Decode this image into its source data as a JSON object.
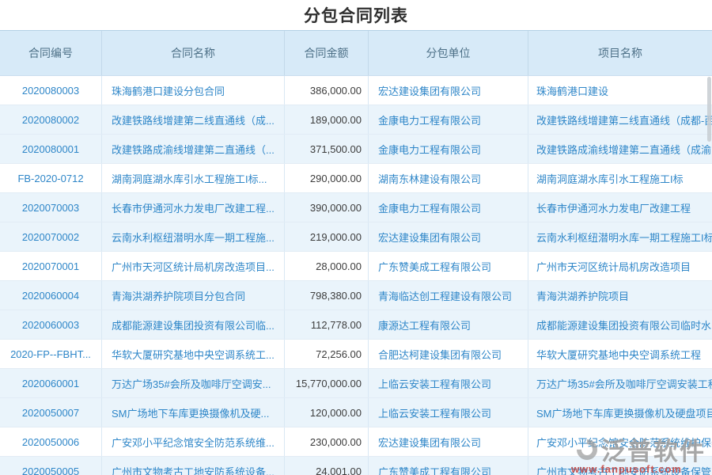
{
  "page": {
    "title": "分包合同列表"
  },
  "table": {
    "columns": [
      {
        "key": "code",
        "label": "合同编号"
      },
      {
        "key": "name",
        "label": "合同名称"
      },
      {
        "key": "amount",
        "label": "合同金额"
      },
      {
        "key": "unit",
        "label": "分包单位"
      },
      {
        "key": "project",
        "label": "项目名称"
      }
    ],
    "rows": [
      {
        "code": "2020080003",
        "name": "珠海鹤港口建设分包合同",
        "amount": "386,000.00",
        "unit": "宏达建设集团有限公司",
        "project": "珠海鹤港口建设"
      },
      {
        "code": "2020080002",
        "name": "改建铁路线增建第二线直通线（成...",
        "amount": "189,000.00",
        "unit": "金康电力工程有限公司",
        "project": "改建铁路线增建第二线直通线（成都-西"
      },
      {
        "code": "2020080001",
        "name": "改建铁路成渝线增建第二直通线（...",
        "amount": "371,500.00",
        "unit": "金康电力工程有限公司",
        "project": "改建铁路成渝线增建第二直通线（成渝"
      },
      {
        "code": "FB-2020-0712",
        "name": "湖南洞庭湖水库引水工程施工I标...",
        "amount": "290,000.00",
        "unit": "湖南东林建设有限公司",
        "project": "湖南洞庭湖水库引水工程施工I标"
      },
      {
        "code": "2020070003",
        "name": "长春市伊通河水力发电厂改建工程...",
        "amount": "390,000.00",
        "unit": "金康电力工程有限公司",
        "project": "长春市伊通河水力发电厂改建工程"
      },
      {
        "code": "2020070002",
        "name": "云南水利枢纽潜明水库一期工程施...",
        "amount": "219,000.00",
        "unit": "宏达建设集团有限公司",
        "project": "云南水利枢纽潜明水库一期工程施工I标"
      },
      {
        "code": "2020070001",
        "name": "广州市天河区统计局机房改造项目...",
        "amount": "28,000.00",
        "unit": "广东赞美成工程有限公司",
        "project": "广州市天河区统计局机房改造项目"
      },
      {
        "code": "2020060004",
        "name": "青海洪湖养护院项目分包合同",
        "amount": "798,380.00",
        "unit": "青海临达创工程建设有限公司",
        "project": "青海洪湖养护院项目"
      },
      {
        "code": "2020060003",
        "name": "成都能源建设集团投资有限公司临...",
        "amount": "112,778.00",
        "unit": "康源达工程有限公司",
        "project": "成都能源建设集团投资有限公司临时水"
      },
      {
        "code": "2020-FP--FBHT...",
        "name": "华软大厦研究基地中央空调系统工...",
        "amount": "72,256.00",
        "unit": "合肥达柯建设集团有限公司",
        "project": "华软大厦研究基地中央空调系统工程"
      },
      {
        "code": "2020060001",
        "name": "万达广场35#会所及咖啡厅空调安...",
        "amount": "15,770,000.00",
        "unit": "上临云安装工程有限公司",
        "project": "万达广场35#会所及咖啡厅空调安装工程"
      },
      {
        "code": "2020050007",
        "name": "SM广场地下车库更换摄像机及硬...",
        "amount": "120,000.00",
        "unit": "上临云安装工程有限公司",
        "project": "SM广场地下车库更换摄像机及硬盘项目"
      },
      {
        "code": "2020050006",
        "name": "广安邓小平纪念馆安全防范系统维...",
        "amount": "230,000.00",
        "unit": "宏达建设集团有限公司",
        "project": "广安邓小平纪念馆安全防范系统维护保养"
      },
      {
        "code": "2020050005",
        "name": "广州市文物考古工地安防系统设备...",
        "amount": "24,001.00",
        "unit": "广东赞美成工程有限公司",
        "project": "广州市文物考古工地安防系统设备保管"
      }
    ]
  },
  "watermark": {
    "brand": "泛普软件",
    "url": "www.fanpusoft.com"
  },
  "colors": {
    "accent": "#2e86c8",
    "header_bg": "#d7eaf8",
    "zebra_row": "#eaf4fb",
    "amount_text": "#3c3c3c",
    "header_text": "#4d7087",
    "watermark_gray": "#9b9b9b",
    "watermark_red": "#c9433c"
  }
}
